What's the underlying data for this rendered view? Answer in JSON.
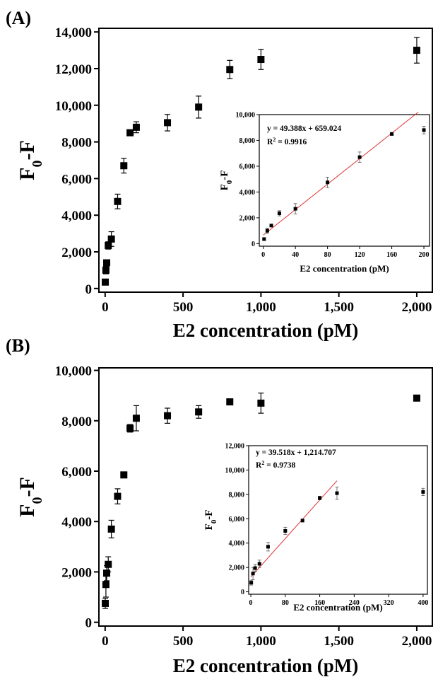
{
  "chart_data": [
    {
      "panel_label": "(A)",
      "type": "scatter",
      "xlabel": "E2 concentration (pM)",
      "ylabel": "F0-F",
      "xlim": [
        -40,
        2100
      ],
      "ylim": [
        -200,
        14200
      ],
      "xticks": [
        0,
        500,
        1000,
        1500,
        2000
      ],
      "xtick_labels": [
        "0",
        "500",
        "1,000",
        "1,500",
        "2,000"
      ],
      "yticks": [
        0,
        2000,
        4000,
        6000,
        8000,
        10000,
        12000,
        14000
      ],
      "ytick_labels": [
        "0",
        "2,000",
        "4,000",
        "6,000",
        "8,000",
        "10,000",
        "12,000",
        "14,000"
      ],
      "grid": false,
      "x": [
        1,
        5,
        10,
        20,
        40,
        80,
        120,
        160,
        200,
        400,
        600,
        800,
        1000,
        2000
      ],
      "y": [
        350,
        1000,
        1400,
        2350,
        2700,
        4750,
        6700,
        8500,
        8800,
        9050,
        9900,
        11950,
        12500,
        13000
      ],
      "yerr": [
        100,
        200,
        100,
        200,
        400,
        400,
        400,
        100,
        300,
        450,
        600,
        500,
        550,
        700
      ],
      "inset": {
        "type": "scatter",
        "xlabel": "E2 concentration (pM)",
        "ylabel": "F0-F",
        "xlim": [
          -5,
          207
        ],
        "ylim": [
          -200,
          10000
        ],
        "xticks": [
          0,
          40,
          80,
          120,
          160,
          200
        ],
        "xtick_labels": [
          "0",
          "40",
          "80",
          "120",
          "160",
          "200"
        ],
        "yticks": [
          0,
          2000,
          4000,
          6000,
          8000,
          10000
        ],
        "ytick_labels": [
          "0",
          "2,000",
          "4,000",
          "6,000",
          "8,000",
          "10,000"
        ],
        "x": [
          1,
          5,
          10,
          20,
          40,
          80,
          120,
          160,
          200
        ],
        "y": [
          350,
          1000,
          1400,
          2350,
          2700,
          4750,
          6700,
          8500,
          8800
        ],
        "yerr": [
          100,
          200,
          100,
          200,
          400,
          400,
          400,
          100,
          300
        ],
        "fit": {
          "slope": 49.388,
          "intercept": 659.024,
          "x_range": [
            0,
            193
          ],
          "color": "#e03030"
        },
        "equation": "y = 49.388x + 659.024",
        "r2_label": "R",
        "r2_sup": "2",
        "r2_value": " = 0.9916"
      }
    },
    {
      "panel_label": "(B)",
      "type": "scatter",
      "xlabel": "E2 concentration (pM)",
      "ylabel": "F0-F",
      "xlim": [
        -40,
        2100
      ],
      "ylim": [
        -150,
        10100
      ],
      "xticks": [
        0,
        500,
        1000,
        1500,
        2000
      ],
      "xtick_labels": [
        "0",
        "500",
        "1,000",
        "1,500",
        "2,000"
      ],
      "yticks": [
        0,
        2000,
        4000,
        6000,
        8000,
        10000
      ],
      "ytick_labels": [
        "0",
        "2,000",
        "4,000",
        "6,000",
        "8,000",
        "10,000"
      ],
      "grid": false,
      "x": [
        1,
        5,
        10,
        20,
        40,
        80,
        120,
        160,
        200,
        400,
        600,
        800,
        1000,
        2000
      ],
      "y": [
        750,
        1500,
        1950,
        2300,
        3700,
        5000,
        5850,
        7700,
        8100,
        8200,
        8350,
        8750,
        8700,
        8900
      ],
      "yerr": [
        200,
        500,
        300,
        300,
        350,
        300,
        100,
        150,
        500,
        300,
        250,
        50,
        400,
        50
      ],
      "inset": {
        "type": "scatter",
        "xlabel": "E2 concentration (pM)",
        "ylabel": "F0-F",
        "xlim": [
          -5,
          410
        ],
        "ylim": [
          -200,
          12000
        ],
        "xticks": [
          0,
          80,
          160,
          240,
          320,
          400
        ],
        "xtick_labels": [
          "0",
          "80",
          "160",
          "240",
          "320",
          "400"
        ],
        "yticks": [
          0,
          2000,
          4000,
          6000,
          8000,
          10000,
          12000
        ],
        "ytick_labels": [
          "0",
          "2,000",
          "4,000",
          "6,000",
          "8,000",
          "10,000",
          "12,000"
        ],
        "x": [
          1,
          5,
          10,
          20,
          40,
          80,
          120,
          160,
          200,
          400
        ],
        "y": [
          750,
          1500,
          1950,
          2300,
          3700,
          5000,
          5850,
          7700,
          8100,
          8200
        ],
        "yerr": [
          200,
          500,
          300,
          300,
          350,
          300,
          100,
          150,
          500,
          300
        ],
        "fit": {
          "slope": 39.518,
          "intercept": 1214.707,
          "x_range": [
            0,
            200
          ],
          "color": "#e03030"
        },
        "equation": "y = 39.518x + 1,214.707",
        "r2_label": "R",
        "r2_sup": "2",
        "r2_value": " = 0.9738"
      }
    }
  ]
}
